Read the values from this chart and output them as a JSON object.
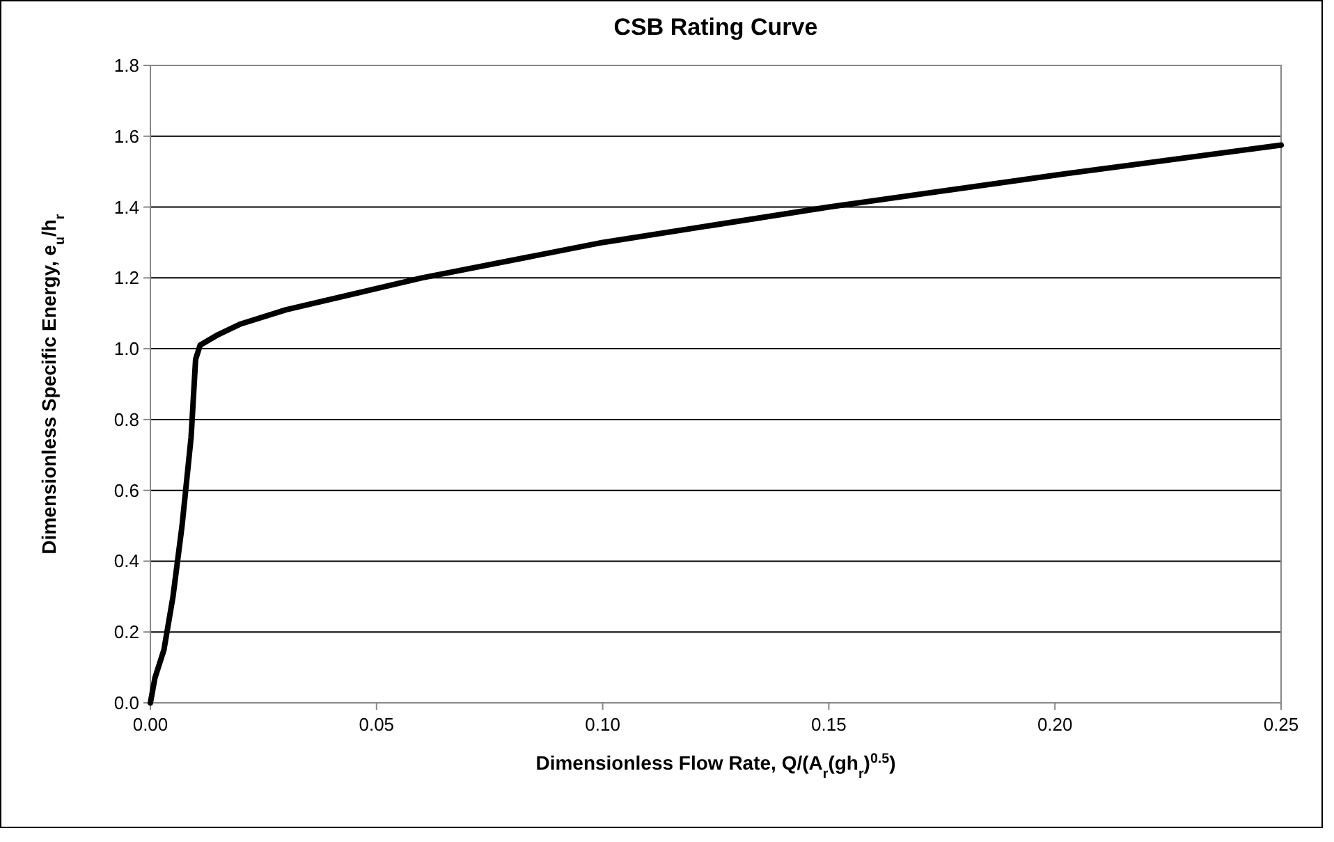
{
  "chart_data": {
    "type": "line",
    "title": "CSB Rating Curve",
    "xlabel": "Dimensionless Flow Rate, Q/(A$_{r}$(gh$_{r}$)$^{0.5}$)",
    "ylabel": "Dimensionless Specific Energy, e$_{u}$/h$_{r}$",
    "x": [
      0,
      0.001,
      0.003,
      0.005,
      0.007,
      0.009,
      0.01,
      0.011,
      0.015,
      0.02,
      0.03,
      0.05,
      0.06,
      0.1,
      0.15,
      0.2,
      0.25
    ],
    "series": [
      {
        "color": "#000000",
        "values": [
          0,
          0.07,
          0.15,
          0.3,
          0.5,
          0.75,
          0.97,
          1.01,
          1.04,
          1.07,
          1.11,
          1.17,
          1.2,
          1.3,
          1.4,
          1.49,
          1.575
        ]
      }
    ],
    "xlim": [
      0,
      0.25
    ],
    "xticks": [
      {
        "value": 0,
        "label": "0.00"
      },
      0.05,
      {
        "value": 0.1,
        "label": "0.10"
      },
      0.15,
      {
        "value": 0.2,
        "label": "0.20"
      },
      0.25
    ],
    "ylim": [
      0,
      1.8
    ],
    "yticks": [
      {
        "value": 0,
        "label": "0.0"
      },
      0.2,
      0.4,
      0.6,
      0.8,
      {
        "value": 1,
        "label": "1.0"
      },
      1.2,
      1.4,
      1.6,
      1.8
    ],
    "grid": "y",
    "marker": "none",
    "line_style": "solid"
  }
}
